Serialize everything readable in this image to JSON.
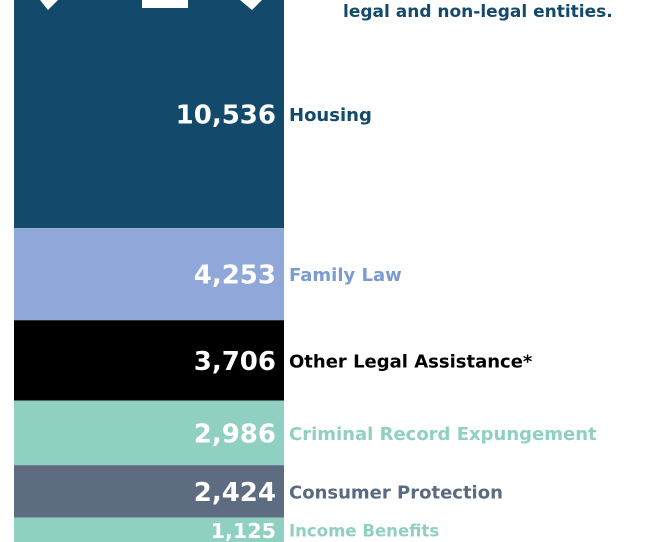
{
  "chart_data": {
    "type": "stacked-column",
    "subtitle": "legal and non-legal entities.",
    "categories": [
      "Housing",
      "Family Law",
      "Other Legal Assistance*",
      "Criminal Record Expungement",
      "Consumer  Protection",
      "Income Benefits"
    ],
    "values": [
      10536,
      4253,
      3706,
      2986,
      2424,
      1125
    ],
    "value_labels": [
      "10,536",
      "4,253",
      "3,706",
      "2,986",
      "2,424",
      "1,125"
    ],
    "colors": [
      "#134a6b",
      "#8fa8d9",
      "#000000",
      "#8fd0c0",
      "#5e6c82",
      "#8fd0c0"
    ],
    "label_colors": [
      "#134a6b",
      "#7b9bd1",
      "#000000",
      "#8fd0c0",
      "#5a6b80",
      "#8fd0c0"
    ]
  }
}
